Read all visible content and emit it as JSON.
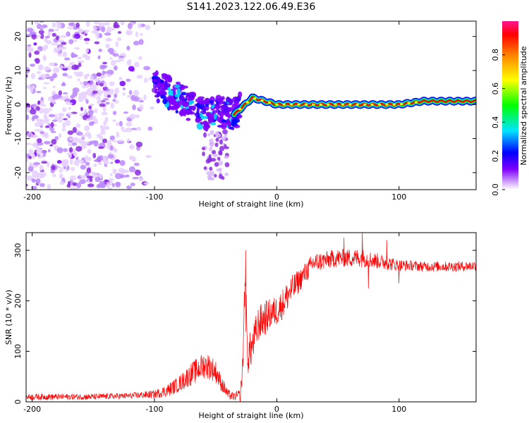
{
  "title": "S141.2023.122.06.49.E36",
  "chart_data": [
    {
      "type": "heatmap",
      "name": "spectrogram",
      "xlabel": "Height of straight line (km)",
      "ylabel": "Frequency (Hz)",
      "xlim": [
        -205,
        163
      ],
      "ylim": [
        -25,
        24.5
      ],
      "x_ticks": [
        -200,
        -100,
        0,
        100
      ],
      "x_tick_labels": [
        "-200",
        "-100",
        "0",
        "100"
      ],
      "y_ticks": [
        -20,
        -10,
        0,
        10,
        20
      ],
      "y_tick_labels": [
        "-20",
        "-10",
        "0",
        "10",
        "20"
      ],
      "colorbar": {
        "label": "Normalized spectral amplitude",
        "range": [
          0,
          1
        ],
        "ticks": [
          0.0,
          0.2,
          0.4,
          0.6,
          0.8
        ],
        "tick_labels": [
          "0.0",
          "0.2",
          "0.4",
          "0.6",
          "0.8"
        ],
        "colors": [
          "#f2e6ff",
          "#cc99ff",
          "#8000ff",
          "#0000ff",
          "#00e5ff",
          "#00ff00",
          "#ffff00",
          "#ff8000",
          "#ff0000",
          "#ff1493"
        ]
      },
      "features": [
        {
          "kind": "noise_blobs",
          "x_range": [
            -205,
            -95
          ],
          "f_range": [
            -25,
            24.5
          ],
          "amplitude_range": [
            0.02,
            0.12
          ]
        },
        {
          "kind": "ridge",
          "description_points": [
            [
              -100,
              6
            ],
            [
              -80,
              2
            ],
            [
              -60,
              -3
            ],
            [
              -45,
              -2
            ],
            [
              -35,
              -3
            ],
            [
              -20,
              2
            ],
            [
              -10,
              1
            ],
            [
              0,
              0
            ],
            [
              100,
              0
            ],
            [
              120,
              1
            ],
            [
              163,
              1
            ]
          ]
        },
        {
          "kind": "streak",
          "x_range": [
            -60,
            -40
          ],
          "f_range": [
            -22,
            -8
          ]
        }
      ]
    },
    {
      "type": "line",
      "name": "snr",
      "xlabel": "Height of straight line (km)",
      "ylabel": "SNR (10 * v/v)",
      "xlim": [
        -205,
        163
      ],
      "ylim": [
        0,
        335
      ],
      "x_ticks": [
        -200,
        -100,
        0,
        100
      ],
      "x_tick_labels": [
        "-200",
        "-100",
        "0",
        "100"
      ],
      "y_ticks": [
        0,
        100,
        200,
        300
      ],
      "y_tick_labels": [
        "0",
        "100",
        "200",
        "300"
      ],
      "color": "#ff0000",
      "series": [
        {
          "name": "SNR",
          "x": [
            -205,
            -180,
            -150,
            -120,
            -100,
            -90,
            -80,
            -70,
            -60,
            -55,
            -50,
            -45,
            -40,
            -35,
            -30,
            -28,
            -26,
            -25,
            -24,
            -20,
            -15,
            -10,
            -5,
            0,
            5,
            10,
            20,
            30,
            40,
            50,
            60,
            70,
            80,
            90,
            100,
            110,
            120,
            130,
            140,
            150,
            163
          ],
          "y": [
            10,
            10,
            10,
            12,
            15,
            22,
            35,
            55,
            72,
            70,
            60,
            35,
            15,
            10,
            15,
            60,
            240,
            170,
            90,
            110,
            155,
            165,
            175,
            180,
            195,
            215,
            245,
            275,
            280,
            285,
            285,
            285,
            280,
            275,
            270,
            270,
            268,
            268,
            268,
            268,
            270
          ],
          "noise": [
            6,
            6,
            6,
            6,
            8,
            12,
            16,
            22,
            26,
            26,
            22,
            16,
            10,
            8,
            10,
            30,
            40,
            50,
            40,
            35,
            35,
            35,
            30,
            30,
            30,
            30,
            22,
            20,
            18,
            18,
            18,
            18,
            16,
            14,
            12,
            10,
            10,
            10,
            10,
            10,
            10
          ],
          "spikes": [
            [
              -25.5,
              300
            ],
            [
              -38,
              5
            ],
            [
              -30,
              0
            ],
            [
              70,
              335
            ],
            [
              75,
              330
            ],
            [
              55,
              325
            ],
            [
              90,
              320
            ],
            [
              75,
              225
            ],
            [
              100,
              235
            ]
          ]
        }
      ]
    }
  ]
}
